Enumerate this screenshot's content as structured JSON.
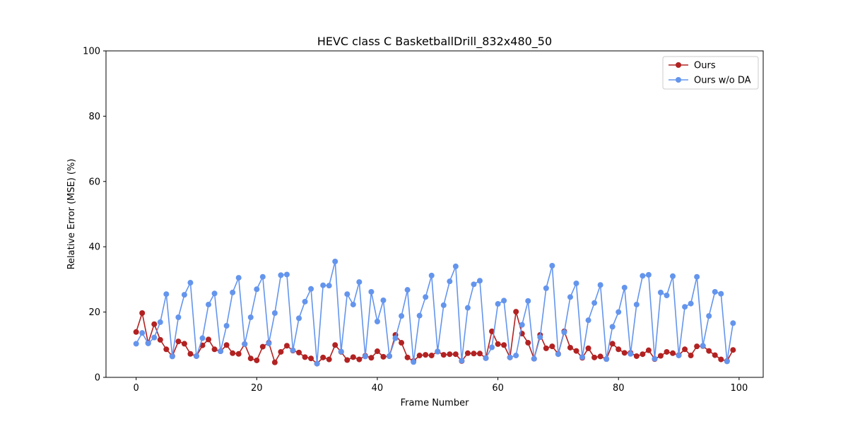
{
  "chart_data": {
    "type": "line",
    "title": "HEVC class C BasketballDrill_832x480_50",
    "xlabel": "Frame Number",
    "ylabel": "Relative Error (MSE) (%)",
    "xlim": [
      -5,
      104
    ],
    "ylim": [
      0,
      100
    ],
    "xticks": [
      0,
      20,
      40,
      60,
      80,
      100
    ],
    "yticks": [
      0,
      20,
      40,
      60,
      80,
      100
    ],
    "grid": false,
    "legend_position": "top-right",
    "x": [
      0,
      1,
      2,
      3,
      4,
      5,
      6,
      7,
      8,
      9,
      10,
      11,
      12,
      13,
      14,
      15,
      16,
      17,
      18,
      19,
      20,
      21,
      22,
      23,
      24,
      25,
      26,
      27,
      28,
      29,
      30,
      31,
      32,
      33,
      34,
      35,
      36,
      37,
      38,
      39,
      40,
      41,
      42,
      43,
      44,
      45,
      46,
      47,
      48,
      49,
      50,
      51,
      52,
      53,
      54,
      55,
      56,
      57,
      58,
      59,
      60,
      61,
      62,
      63,
      64,
      65,
      66,
      67,
      68,
      69,
      70,
      71,
      72,
      73,
      74,
      75,
      76,
      77,
      78,
      79,
      80,
      81,
      82,
      83,
      84,
      85,
      86,
      87,
      88,
      89,
      90,
      91,
      92,
      93,
      94,
      95,
      96,
      97,
      98,
      99
    ],
    "series": [
      {
        "name": "Ours",
        "color": "#b22222",
        "values": [
          13.9,
          19.7,
          10.5,
          16.3,
          11.5,
          8.6,
          6.5,
          11.0,
          10.3,
          7.2,
          6.5,
          9.8,
          11.6,
          8.6,
          8.0,
          9.9,
          7.4,
          7.2,
          10.2,
          5.8,
          5.2,
          9.4,
          10.6,
          4.6,
          7.8,
          9.7,
          8.2,
          7.6,
          6.2,
          5.8,
          4.2,
          6.1,
          5.5,
          9.9,
          7.8,
          5.3,
          6.2,
          5.5,
          6.6,
          6.0,
          8.0,
          6.3,
          6.5,
          13.0,
          10.6,
          6.1,
          5.0,
          6.7,
          6.9,
          6.7,
          7.9,
          6.9,
          7.1,
          7.1,
          5.0,
          7.4,
          7.3,
          7.3,
          5.9,
          14.1,
          10.2,
          9.9,
          6.1,
          20.1,
          13.4,
          10.6,
          5.7,
          13.0,
          8.9,
          9.5,
          7.2,
          14.1,
          9.1,
          8.1,
          6.0,
          8.9,
          6.1,
          6.4,
          5.6,
          10.3,
          8.6,
          7.5,
          7.5,
          6.5,
          7.1,
          8.3,
          5.6,
          6.6,
          7.8,
          7.4,
          6.8,
          8.6,
          6.7,
          9.5,
          9.6,
          8.1,
          6.8,
          5.5,
          5.0,
          8.4
        ]
      },
      {
        "name": "Ours w/o DA",
        "color": "#6495ed",
        "values": [
          10.3,
          13.6,
          10.4,
          12.2,
          16.9,
          25.5,
          6.4,
          18.4,
          25.3,
          29.0,
          6.5,
          12.0,
          22.3,
          25.7,
          8.0,
          15.8,
          26.0,
          30.5,
          10.2,
          18.4,
          27.0,
          30.8,
          10.4,
          19.7,
          31.3,
          31.5,
          8.3,
          18.1,
          23.2,
          27.1,
          4.2,
          28.2,
          28.1,
          35.5,
          7.9,
          25.5,
          22.3,
          29.2,
          6.4,
          26.2,
          17.1,
          23.6,
          6.5,
          12.0,
          18.8,
          26.8,
          4.7,
          18.9,
          24.6,
          31.2,
          7.9,
          22.1,
          29.4,
          34.0,
          5.1,
          21.3,
          28.5,
          29.6,
          5.9,
          9.2,
          22.5,
          23.5,
          6.1,
          6.7,
          16.1,
          23.4,
          5.7,
          12.3,
          27.3,
          34.2,
          7.1,
          13.8,
          24.6,
          28.8,
          6.2,
          17.5,
          22.8,
          28.3,
          5.6,
          15.5,
          20.0,
          27.5,
          7.2,
          22.3,
          31.1,
          31.4,
          5.7,
          26.0,
          25.1,
          31.0,
          6.7,
          21.6,
          22.6,
          30.8,
          9.7,
          18.8,
          26.2,
          25.6,
          4.9,
          16.6
        ]
      }
    ]
  }
}
